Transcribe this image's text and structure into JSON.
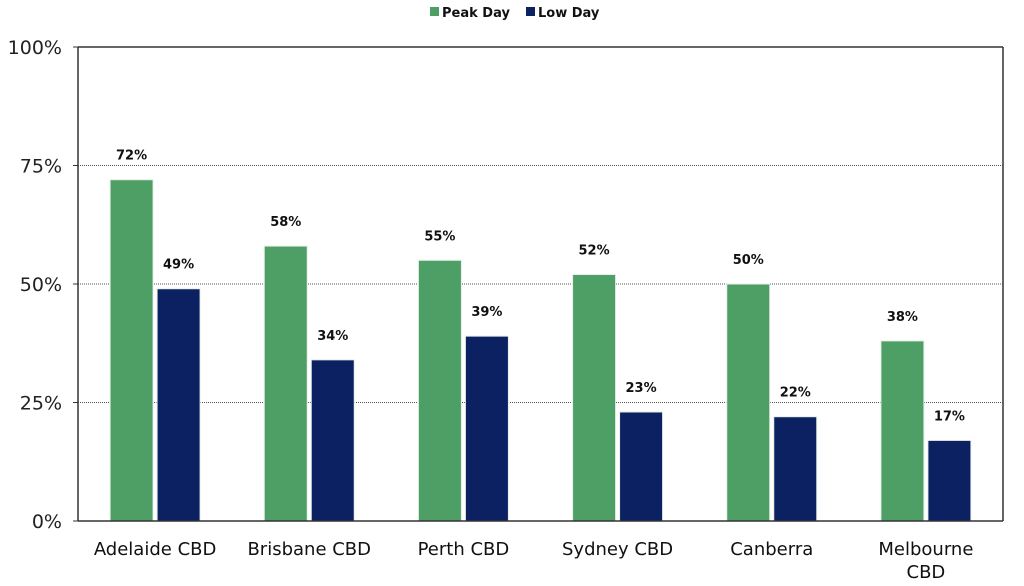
{
  "chart_data": {
    "type": "bar",
    "categories": [
      "Adelaide CBD",
      "Brisbane CBD",
      "Perth CBD",
      "Sydney CBD",
      "Canberra",
      "Melbourne CBD"
    ],
    "series": [
      {
        "name": "Peak Day",
        "color": "#4e9f66",
        "values": [
          72,
          58,
          55,
          52,
          50,
          38
        ],
        "labels": [
          "72%",
          "58%",
          "55%",
          "52%",
          "50%",
          "38%"
        ]
      },
      {
        "name": "Low Day",
        "color": "#0b2161",
        "values": [
          49,
          34,
          39,
          23,
          22,
          17
        ],
        "labels": [
          "49%",
          "34%",
          "39%",
          "23%",
          "22%",
          "17%"
        ]
      }
    ],
    "ylim": [
      0,
      100
    ],
    "yticks": [
      0,
      25,
      50,
      75,
      100
    ],
    "ytick_labels": [
      "0%",
      "25%",
      "50%",
      "75%",
      "100%"
    ],
    "grid": "horizontal dotted",
    "legend": "top-center"
  }
}
